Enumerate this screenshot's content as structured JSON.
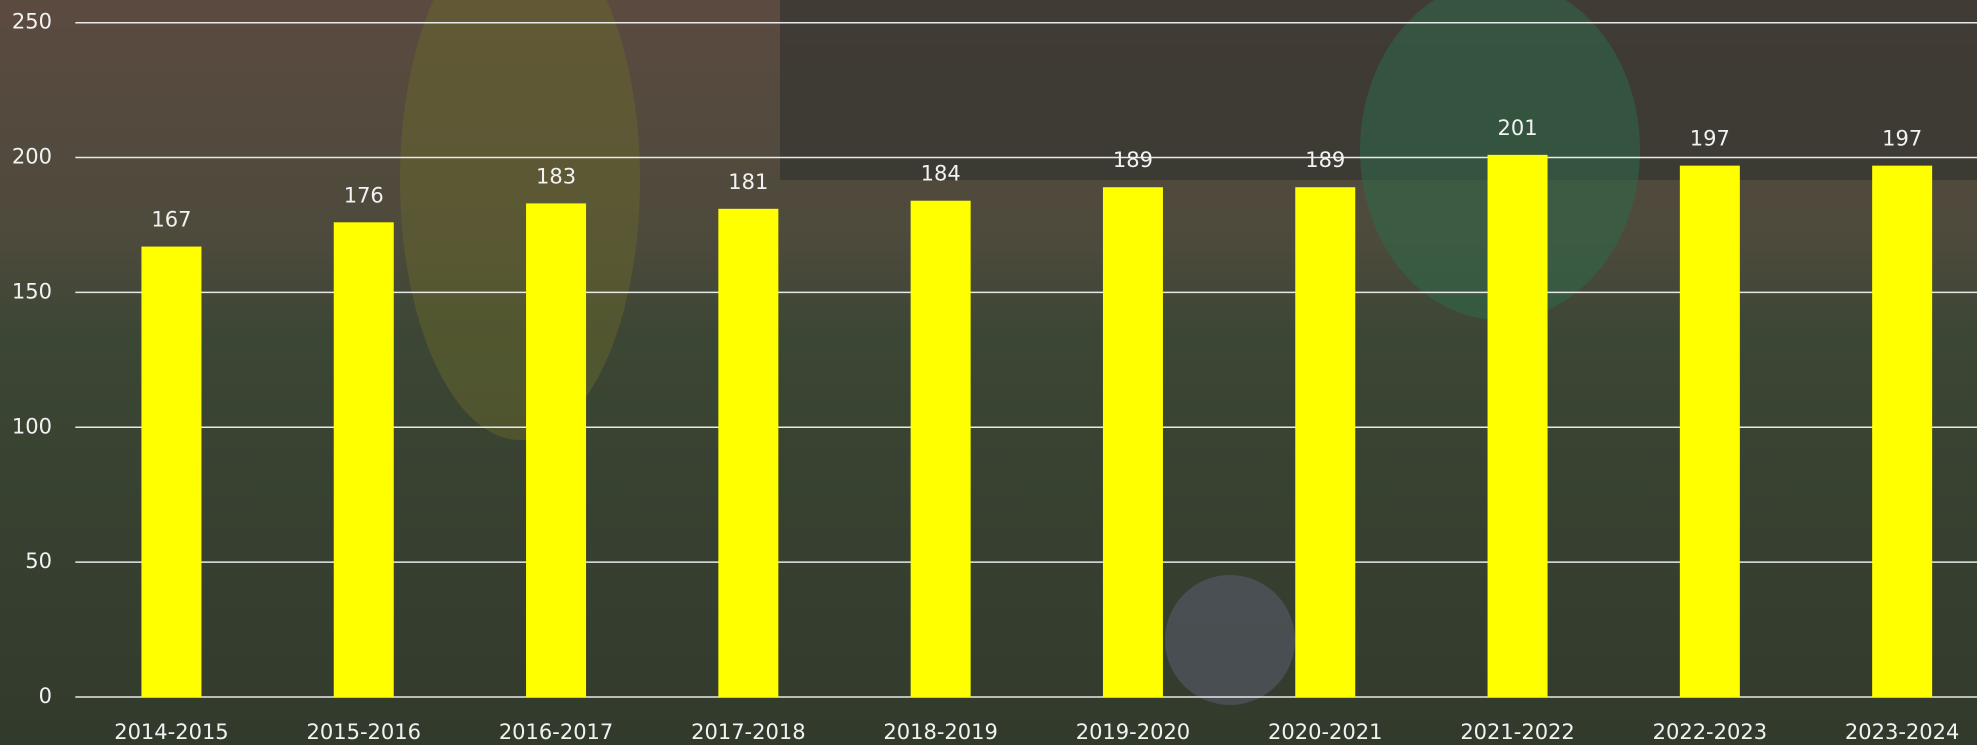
{
  "chart_data": {
    "type": "bar",
    "categories": [
      "2014-2015",
      "2015-2016",
      "2016-2017",
      "2017-2018",
      "2018-2019",
      "2019-2020",
      "2020-2021",
      "2021-2022",
      "2022-2023",
      "2023-2024"
    ],
    "values": [
      167,
      176,
      183,
      181,
      184,
      189,
      189,
      201,
      197,
      197
    ],
    "color": "#ffff00",
    "ylim": [
      0,
      250
    ],
    "yticks": [
      0,
      50,
      100,
      150,
      200,
      250
    ],
    "grid": true
  }
}
